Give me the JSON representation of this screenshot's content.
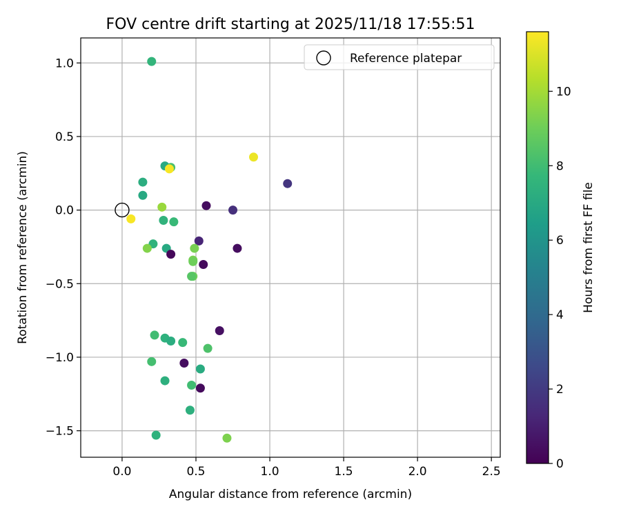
{
  "chart_data": {
    "type": "scatter",
    "title": "FOV centre drift starting at 2025/11/18 17:55:51",
    "xlabel": "Angular distance from reference (arcmin)",
    "ylabel": "Rotation from reference (arcmin)",
    "xlim": [
      -0.28,
      2.56
    ],
    "ylim": [
      -1.68,
      1.17
    ],
    "xticks": [
      0.0,
      0.5,
      1.0,
      1.5,
      2.0,
      2.5
    ],
    "xtick_labels": [
      "0.0",
      "0.5",
      "1.0",
      "1.5",
      "2.0",
      "2.5"
    ],
    "yticks": [
      1.0,
      0.5,
      0.0,
      -0.5,
      -1.0,
      -1.5
    ],
    "ytick_labels": [
      "1.0",
      "0.5",
      "0.0",
      "−0.5",
      "−1.0",
      "−1.5"
    ],
    "grid": true,
    "legend": {
      "position": "top-right",
      "entries": [
        "Reference platepar"
      ]
    },
    "reference_point": {
      "x": 0.0,
      "y": 0.0
    },
    "colorbar": {
      "label": "Hours from first FF file",
      "range": [
        0,
        11.6
      ],
      "ticks": [
        0,
        2,
        4,
        6,
        8,
        10
      ],
      "tick_labels": [
        "0",
        "2",
        "4",
        "6",
        "8",
        "10"
      ],
      "colormap": [
        "#440154",
        "#482878",
        "#3e4989",
        "#31688e",
        "#26828e",
        "#1f9e89",
        "#35b779",
        "#6ece58",
        "#b5de2b",
        "#fde725"
      ]
    },
    "points": [
      {
        "x": 0.2,
        "y": 1.01,
        "h": 7.6
      },
      {
        "x": 0.29,
        "y": 0.3,
        "h": 7.0
      },
      {
        "x": 0.33,
        "y": 0.29,
        "h": 8.2
      },
      {
        "x": 0.32,
        "y": 0.28,
        "h": 11.5
      },
      {
        "x": 0.89,
        "y": 0.36,
        "h": 11.3
      },
      {
        "x": 1.12,
        "y": 0.18,
        "h": 1.8
      },
      {
        "x": 0.14,
        "y": 0.19,
        "h": 7.2
      },
      {
        "x": 0.14,
        "y": 0.1,
        "h": 7.0
      },
      {
        "x": 0.27,
        "y": 0.02,
        "h": 9.8
      },
      {
        "x": 0.57,
        "y": 0.03,
        "h": 0.4
      },
      {
        "x": 0.75,
        "y": 0.0,
        "h": 1.6
      },
      {
        "x": 0.06,
        "y": -0.06,
        "h": 11.5
      },
      {
        "x": 0.28,
        "y": -0.07,
        "h": 7.5
      },
      {
        "x": 0.35,
        "y": -0.08,
        "h": 7.8
      },
      {
        "x": 0.21,
        "y": -0.23,
        "h": 7.5
      },
      {
        "x": 0.17,
        "y": -0.26,
        "h": 9.4
      },
      {
        "x": 0.3,
        "y": -0.26,
        "h": 7.0
      },
      {
        "x": 0.52,
        "y": -0.21,
        "h": 1.2
      },
      {
        "x": 0.49,
        "y": -0.26,
        "h": 9.2
      },
      {
        "x": 0.78,
        "y": -0.26,
        "h": 0.4
      },
      {
        "x": 0.33,
        "y": -0.3,
        "h": 0.2
      },
      {
        "x": 0.48,
        "y": -0.34,
        "h": 9.2
      },
      {
        "x": 0.48,
        "y": -0.35,
        "h": 9.0
      },
      {
        "x": 0.55,
        "y": -0.37,
        "h": 0.3
      },
      {
        "x": 0.48,
        "y": -0.45,
        "h": 9.0
      },
      {
        "x": 0.47,
        "y": -0.45,
        "h": 8.5
      },
      {
        "x": 0.66,
        "y": -0.82,
        "h": 0.5
      },
      {
        "x": 0.22,
        "y": -0.85,
        "h": 8.0
      },
      {
        "x": 0.29,
        "y": -0.87,
        "h": 7.4
      },
      {
        "x": 0.33,
        "y": -0.89,
        "h": 7.2
      },
      {
        "x": 0.41,
        "y": -0.9,
        "h": 7.8
      },
      {
        "x": 0.58,
        "y": -0.94,
        "h": 8.3
      },
      {
        "x": 0.2,
        "y": -1.03,
        "h": 8.1
      },
      {
        "x": 0.42,
        "y": -1.04,
        "h": 0.4
      },
      {
        "x": 0.53,
        "y": -1.08,
        "h": 7.1
      },
      {
        "x": 0.29,
        "y": -1.16,
        "h": 7.3
      },
      {
        "x": 0.47,
        "y": -1.19,
        "h": 8.0
      },
      {
        "x": 0.53,
        "y": -1.21,
        "h": 0.3
      },
      {
        "x": 0.46,
        "y": -1.36,
        "h": 7.3
      },
      {
        "x": 0.23,
        "y": -1.53,
        "h": 7.4
      },
      {
        "x": 0.71,
        "y": -1.55,
        "h": 9.3
      }
    ]
  }
}
